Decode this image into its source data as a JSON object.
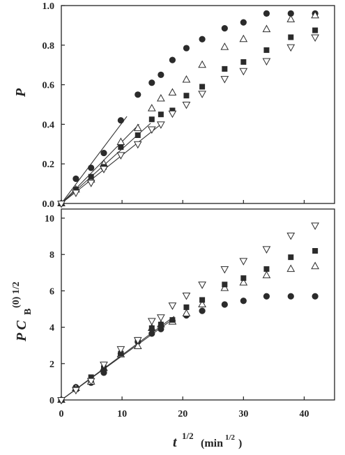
{
  "chart_data": [
    {
      "type": "scatter",
      "ylabel": "P",
      "xlim": [
        0,
        45
      ],
      "ylim": [
        0,
        1.0
      ],
      "yticks": [
        "0.0",
        "0.2",
        "0.4",
        "0.6",
        "0.8",
        "1.0"
      ],
      "xticks": [
        0,
        10,
        20,
        30,
        40
      ],
      "series": [
        {
          "marker": "filled-circle",
          "color": "#2b2b2b",
          "x": [
            0,
            2.4,
            4.9,
            7.0,
            9.8,
            12.6,
            14.9,
            16.4,
            18.3,
            20.6,
            23.2,
            26.9,
            30.0,
            33.8,
            37.8,
            41.8
          ],
          "y": [
            0,
            0.125,
            0.18,
            0.255,
            0.42,
            0.55,
            0.61,
            0.65,
            0.725,
            0.785,
            0.83,
            0.885,
            0.915,
            0.96,
            0.96,
            0.96
          ]
        },
        {
          "marker": "open-triangle-up",
          "color": "#2b2b2b",
          "x": [
            0,
            2.4,
            4.9,
            7.0,
            9.8,
            12.6,
            14.9,
            16.4,
            18.3,
            20.6,
            23.2,
            26.9,
            30.0,
            33.8,
            37.8,
            41.8
          ],
          "y": [
            0,
            0.07,
            0.12,
            0.2,
            0.31,
            0.38,
            0.48,
            0.53,
            0.56,
            0.625,
            0.7,
            0.79,
            0.83,
            0.88,
            0.93,
            0.95
          ]
        },
        {
          "marker": "filled-square",
          "color": "#2b2b2b",
          "x": [
            0,
            2.4,
            4.9,
            7.0,
            9.8,
            12.6,
            14.9,
            16.4,
            18.3,
            20.6,
            23.2,
            26.9,
            30.0,
            33.8,
            37.8,
            41.8
          ],
          "y": [
            0,
            0.07,
            0.135,
            0.185,
            0.285,
            0.345,
            0.425,
            0.45,
            0.47,
            0.545,
            0.59,
            0.68,
            0.715,
            0.775,
            0.84,
            0.875
          ]
        },
        {
          "marker": "open-triangle-down",
          "color": "#2b2b2b",
          "x": [
            0,
            2.4,
            4.9,
            7.0,
            9.8,
            12.6,
            14.9,
            16.4,
            18.3,
            20.6,
            23.2,
            26.9,
            30.0,
            33.8,
            37.8,
            41.8
          ],
          "y": [
            0,
            0.055,
            0.105,
            0.175,
            0.245,
            0.3,
            0.375,
            0.4,
            0.455,
            0.5,
            0.555,
            0.63,
            0.67,
            0.72,
            0.79,
            0.84
          ]
        }
      ],
      "fit_lines": [
        {
          "x": [
            0,
            10.8
          ],
          "y": [
            0,
            0.44
          ]
        },
        {
          "x": [
            0,
            12.8
          ],
          "y": [
            0,
            0.4
          ]
        },
        {
          "x": [
            0,
            14.7
          ],
          "y": [
            0,
            0.405
          ]
        },
        {
          "x": [
            0,
            16.4
          ],
          "y": [
            0,
            0.4
          ]
        }
      ]
    },
    {
      "type": "scatter",
      "ylabel_main": "P C",
      "ylabel_sub": "B",
      "ylabel_sup": "(0) 1/2",
      "xlabel_main": "t",
      "xlabel_sup": "1/2",
      "xlabel_unit": "(min",
      "xlabel_unit_sup": "1/2",
      "xlabel_unit_close": ")",
      "xlim": [
        0,
        45
      ],
      "ylim": [
        0,
        10.5
      ],
      "yticks": [
        0,
        2,
        4,
        6,
        8,
        10
      ],
      "xticks": [
        0,
        10,
        20,
        30,
        40
      ],
      "series": [
        {
          "marker": "filled-circle",
          "color": "#2b2b2b",
          "x": [
            0,
            2.4,
            4.9,
            7.0,
            9.8,
            12.6,
            14.9,
            16.4,
            18.3,
            20.6,
            23.2,
            26.9,
            30.0,
            33.8,
            37.8,
            41.8
          ],
          "y": [
            0,
            0.7,
            0.95,
            1.5,
            2.55,
            3.2,
            3.65,
            3.9,
            4.35,
            4.65,
            4.9,
            5.25,
            5.45,
            5.7,
            5.7,
            5.7
          ]
        },
        {
          "marker": "open-triangle-up",
          "color": "#2b2b2b",
          "x": [
            0,
            2.4,
            4.9,
            7.0,
            9.8,
            12.6,
            14.9,
            16.4,
            18.3,
            20.6,
            23.2,
            26.9,
            30.0,
            33.8,
            37.8,
            41.8
          ],
          "y": [
            0,
            0.65,
            1.0,
            1.75,
            2.5,
            2.95,
            3.95,
            4.15,
            4.3,
            4.75,
            5.25,
            6.15,
            6.45,
            6.85,
            7.2,
            7.35
          ]
        },
        {
          "marker": "filled-square",
          "color": "#2b2b2b",
          "x": [
            0,
            2.4,
            4.9,
            7.0,
            9.8,
            12.6,
            14.9,
            16.4,
            18.3,
            20.6,
            23.2,
            26.9,
            30.0,
            33.8,
            37.8,
            41.8
          ],
          "y": [
            0,
            0.6,
            1.25,
            1.75,
            2.55,
            3.3,
            3.95,
            4.15,
            4.4,
            5.1,
            5.5,
            6.35,
            6.7,
            7.2,
            7.85,
            8.2
          ]
        },
        {
          "marker": "open-triangle-down",
          "color": "#2b2b2b",
          "x": [
            0,
            2.4,
            4.9,
            7.0,
            9.8,
            12.6,
            14.9,
            16.4,
            18.3,
            20.6,
            23.2,
            26.9,
            30.0,
            33.8,
            37.8,
            41.8
          ],
          "y": [
            0,
            0.55,
            1.05,
            1.95,
            2.8,
            3.3,
            4.35,
            4.55,
            5.2,
            5.75,
            6.35,
            7.2,
            7.65,
            8.3,
            9.05,
            9.6
          ]
        }
      ],
      "fit_lines": [
        {
          "x": [
            0,
            18.6
          ],
          "y": [
            0,
            4.6
          ]
        },
        {
          "x": [
            0,
            18.6
          ],
          "y": [
            0,
            4.5
          ]
        }
      ]
    }
  ]
}
